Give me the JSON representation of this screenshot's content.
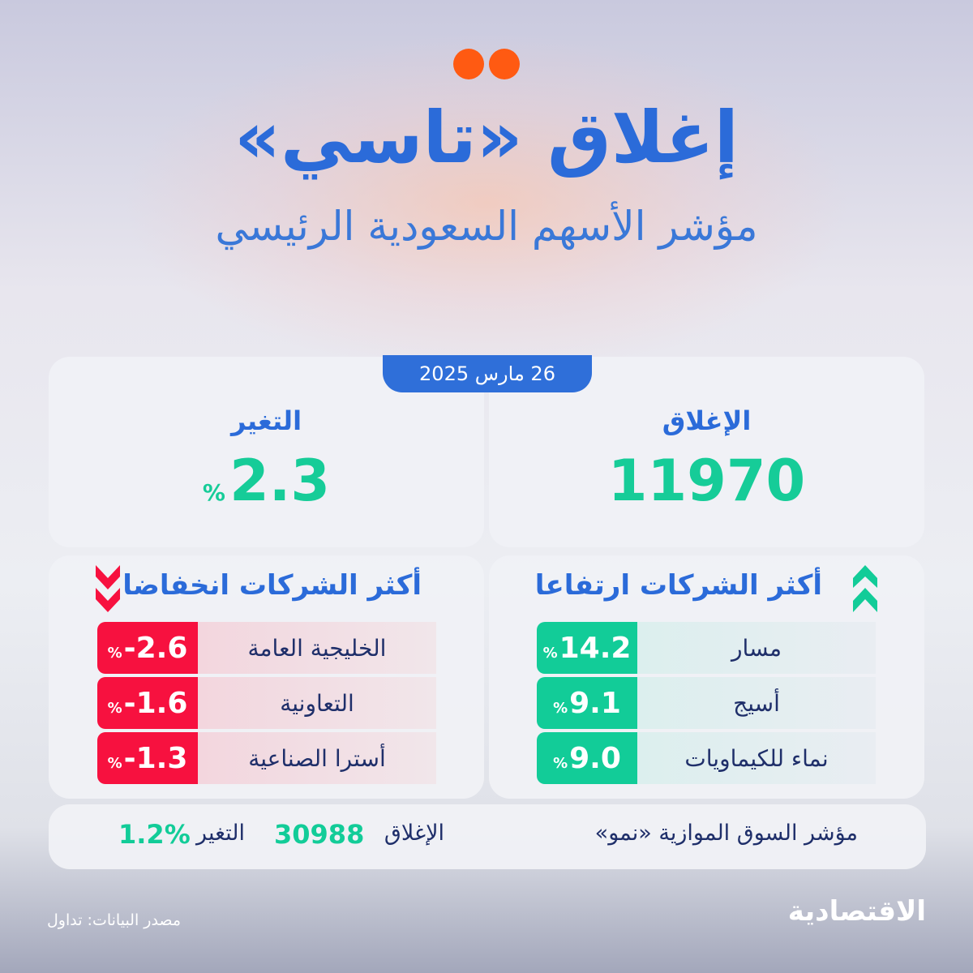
{
  "header": {
    "title": "إغلاق «تاسي»",
    "subtitle": "مؤشر الأسهم السعودية الرئيسي"
  },
  "date": "26 مارس 2025",
  "main_index": {
    "close_label": "الإغلاق",
    "close_value": "11970",
    "change_label": "التغير",
    "change_value": "2.3",
    "change_unit": "%"
  },
  "gainers": {
    "title": "أكثر الشركات ارتفاعا",
    "icon": "double-chevron-up-icon",
    "items": [
      {
        "name": "مسار",
        "value": "14.2",
        "unit": "%"
      },
      {
        "name": "أسيج",
        "value": "9.1",
        "unit": "%"
      },
      {
        "name": "نماء للكيماويات",
        "value": "9.0",
        "unit": "%"
      }
    ]
  },
  "losers": {
    "title": "أكثر الشركات انخفاضا",
    "icon": "double-chevron-down-icon",
    "items": [
      {
        "name": "الخليجية العامة",
        "value": "-2.6",
        "unit": "%"
      },
      {
        "name": "التعاونية",
        "value": "-1.6",
        "unit": "%"
      },
      {
        "name": "أسترا الصناعية",
        "value": "-1.3",
        "unit": "%"
      }
    ]
  },
  "nomu": {
    "label": "مؤشر السوق الموازية «نمو»",
    "close_label": "الإغلاق",
    "close_value": "30988",
    "change_label": "التغير",
    "change_value": "1.2%"
  },
  "footer": {
    "source": "مصدر البيانات: تداول",
    "logo": "الاقتصادية"
  },
  "colors": {
    "accent": "#2b6bd9",
    "up": "#12cc98",
    "down": "#f7113f",
    "dots": "#ff5a12"
  }
}
